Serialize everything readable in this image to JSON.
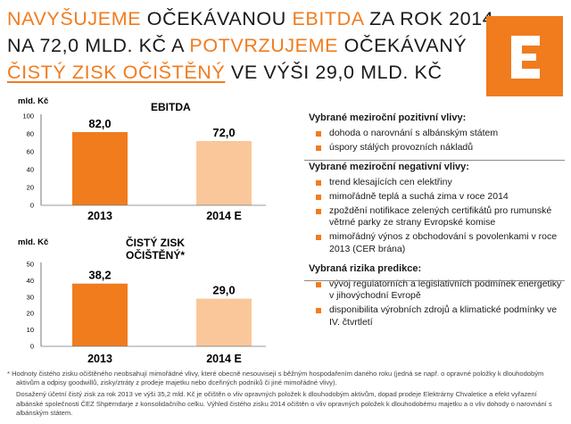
{
  "title": {
    "line1_pre": "NAVYŠUJEME",
    "line1_mid": " OČEKÁVANOU ",
    "line1_acc": "EBITDA",
    "line1_post": " ZA ROK 2014",
    "line2_pre": "NA 72,0 MLD. KČ A ",
    "line2_acc": "POTVRZUJEME",
    "line2_post": " OČEKÁVANÝ",
    "line3_acc": "ČISTÝ ZISK OČIŠTĚNÝ",
    "line3_post": " VE VÝŠI 29,0 MLD. KČ"
  },
  "colors": {
    "accent": "#f07c1e",
    "bar_actual": "#f07c1e",
    "bar_estimate": "#f9c79a"
  },
  "chart_data": [
    {
      "type": "bar",
      "title": "EBITDA",
      "ylabel": "mld. Kč",
      "categories": [
        "2013",
        "2014 E"
      ],
      "values": [
        82.0,
        72.0
      ],
      "value_labels": [
        "82,0",
        "72,0"
      ],
      "yticks": [
        0,
        20,
        40,
        60,
        80,
        100
      ],
      "ylim": [
        0,
        100
      ],
      "bar_colors": [
        "#f07c1e",
        "#f9c79a"
      ],
      "grid": false
    },
    {
      "type": "bar",
      "title": "ČISTÝ ZISK OČIŠTĚNÝ*",
      "title_lines": [
        "ČISTÝ ZISK",
        "OČIŠTĚNÝ*"
      ],
      "ylabel": "mld. Kč",
      "categories": [
        "2013",
        "2014 E"
      ],
      "values": [
        38.2,
        29.0
      ],
      "value_labels": [
        "38,2",
        "29,0"
      ],
      "yticks": [
        0,
        10,
        20,
        30,
        40,
        50
      ],
      "ylim": [
        0,
        50
      ],
      "bar_colors": [
        "#f07c1e",
        "#f9c79a"
      ],
      "grid": false
    }
  ],
  "sidebar": {
    "positive": {
      "heading": "Vybrané meziroční pozitivní vlivy:",
      "items": [
        "dohoda o narovnání s albánským státem",
        "úspory stálých provozních nákladů"
      ]
    },
    "negative": {
      "heading": "Vybrané meziroční negativní vlivy:",
      "items": [
        "trend klesajících cen elektřiny",
        "mimořádně teplá a suchá zima v roce 2014",
        "zpoždění notifikace zelených certifikátů pro rumunské větrné parky ze strany Evropské komise",
        "mimořádný výnos z obchodování s povolenkami v roce 2013 (CER brána)"
      ]
    },
    "risks": {
      "heading": "Vybraná rizika predikce:",
      "items": [
        "vývoj regulatorních a legislativních podmínek energetiky v jihovýchodní Evropě",
        "disponibilita výrobních zdrojů a klimatické podmínky ve IV. čtvrtletí"
      ]
    }
  },
  "footnote": {
    "p1": "* Hodnoty čistého zisku očištěného neobsahují mimořádné vlivy, které obecně nesouvisejí s běžným hospodařením daného roku (jedná se např. o opravné položky k dlouhodobým aktivům a odpisy goodwillů, zisky/ztráty z prodeje majetku nebo dceřiných podniků či jiné mimořádné vlivy).",
    "p2": "Dosažený účetní čistý zisk za rok 2013 ve výši 35,2 mld. Kč je očištěn o vliv opravných položek k dlouhodobým aktivům, dopad prodeje Elektrárny Chvaletice a efekt vyřazení albánské společnosti ČEZ Shpërndarje z konsolidačního celku. Výhled čistého zisku 2014 očištěn o vliv opravných položek k dlouhodobému majetku a o vliv dohody o narovnání s albánským státem."
  }
}
